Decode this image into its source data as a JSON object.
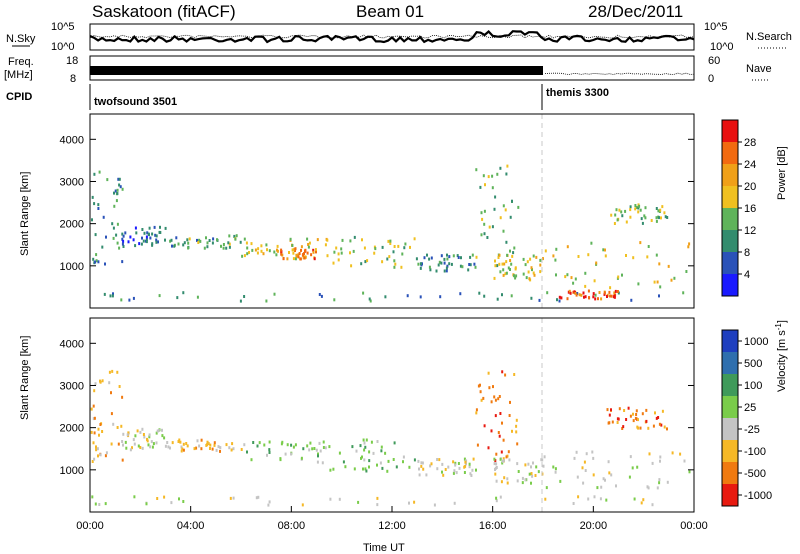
{
  "header": {
    "title": "Saskatoon (fitACF)",
    "beam": "Beam 01",
    "date": "28/Dec/2011"
  },
  "panels": {
    "nsky_label": "N.Sky",
    "nsearch_label": "N.Search",
    "freq_label": "Freq.",
    "freq_unit": "[MHz]",
    "nave_label": "Nave",
    "cpid_label": "CPID",
    "nsky_ticks": [
      "10^5",
      "10^0"
    ],
    "nsearch_ticks": [
      "10^5",
      "10^0"
    ],
    "freq_ticks": [
      "18",
      "8"
    ],
    "nave_ticks": [
      "60",
      "0"
    ],
    "cpid_segments": [
      {
        "start_hour": 0,
        "end_hour": 18,
        "name": "twofsound 3501"
      },
      {
        "start_hour": 18,
        "end_hour": 24,
        "name": "themis 3300"
      }
    ]
  },
  "colors": {
    "axis": "#000000",
    "marker_line": "#c8c8c8",
    "velocity_ground_scatter": "#c4c4c4"
  },
  "chart_data": [
    {
      "type": "heatmap",
      "name": "power",
      "xlabel": "",
      "ylabel": "Slant Range [km]",
      "xlim_hours": [
        0,
        24
      ],
      "ylim": [
        0,
        4600
      ],
      "yticks": [
        1000,
        2000,
        3000,
        4000
      ],
      "colorbar": {
        "label": "Power [dB]",
        "range": [
          0,
          32
        ],
        "ticks": [
          4,
          8,
          12,
          16,
          20,
          24,
          28
        ],
        "colors": [
          "#1a1aff",
          "#2a52b8",
          "#338c6e",
          "#5fb35a",
          "#f0c020",
          "#f0a018",
          "#f26a10",
          "#e81010"
        ]
      },
      "regions": [
        {
          "t": [
            0.0,
            1.3
          ],
          "r": [
            1000,
            3400
          ],
          "v": 10
        },
        {
          "t": [
            1.2,
            3.0
          ],
          "r": [
            1500,
            2000
          ],
          "v": 7
        },
        {
          "t": [
            3.0,
            6.0
          ],
          "r": [
            1450,
            1750
          ],
          "v": 12
        },
        {
          "t": [
            6.0,
            9.5
          ],
          "r": [
            1200,
            1700
          ],
          "v": 18
        },
        {
          "t": [
            7.5,
            9.0
          ],
          "r": [
            1200,
            1450
          ],
          "v": 24
        },
        {
          "t": [
            9.5,
            13.0
          ],
          "r": [
            1000,
            1750
          ],
          "v": 15
        },
        {
          "t": [
            13.0,
            15.3
          ],
          "r": [
            900,
            1300
          ],
          "v": 9
        },
        {
          "t": [
            15.3,
            17.0
          ],
          "r": [
            900,
            3400
          ],
          "v": 13
        },
        {
          "t": [
            16.0,
            18.0
          ],
          "r": [
            700,
            1300
          ],
          "v": 18
        },
        {
          "t": [
            18.0,
            24.0
          ],
          "r": [
            500,
            1600
          ],
          "v": 17
        },
        {
          "t": [
            20.5,
            23.0
          ],
          "r": [
            2000,
            2500
          ],
          "v": 14
        },
        {
          "t": [
            0.0,
            24.0
          ],
          "r": [
            200,
            400
          ],
          "v": 9
        },
        {
          "t": [
            18.5,
            21.0
          ],
          "r": [
            250,
            450
          ],
          "v": 27
        }
      ]
    },
    {
      "type": "heatmap",
      "name": "velocity",
      "xlabel": "Time UT",
      "ylabel": "Slant Range [km]",
      "xlim_hours": [
        0,
        24
      ],
      "ylim": [
        0,
        4600
      ],
      "yticks": [
        1000,
        2000,
        3000,
        4000
      ],
      "xticks": [
        "00:00",
        "04:00",
        "08:00",
        "12:00",
        "16:00",
        "20:00",
        "00:00"
      ],
      "xtick_hours": [
        0,
        4,
        8,
        12,
        16,
        20,
        24
      ],
      "colorbar": {
        "label": "Velocity [m s^-1]",
        "ticks": [
          "1000",
          "500",
          "100",
          "25",
          "-25",
          "-100",
          "-500",
          "-1000"
        ],
        "colors": [
          "#1f3fbf",
          "#2f6fae",
          "#3f9a5a",
          "#7acc4a",
          "#c4c4c4",
          "#f5b826",
          "#f07a10",
          "#e81a10"
        ]
      },
      "regions": [
        {
          "t": [
            0.0,
            1.3
          ],
          "r": [
            1200,
            3400
          ],
          "v": 5
        },
        {
          "t": [
            1.2,
            3.0
          ],
          "r": [
            1500,
            2000
          ],
          "v": 4
        },
        {
          "t": [
            3.0,
            6.0
          ],
          "r": [
            1450,
            1750
          ],
          "v": 5
        },
        {
          "t": [
            6.0,
            9.5
          ],
          "r": [
            1200,
            1700
          ],
          "v": 3
        },
        {
          "t": [
            9.5,
            13.0
          ],
          "r": [
            1000,
            1750
          ],
          "v": 3
        },
        {
          "t": [
            13.0,
            15.3
          ],
          "r": [
            900,
            1300
          ],
          "v": 4
        },
        {
          "t": [
            15.3,
            17.0
          ],
          "r": [
            1200,
            3400
          ],
          "v": 6
        },
        {
          "t": [
            16.0,
            18.0
          ],
          "r": [
            700,
            1300
          ],
          "v": 4
        },
        {
          "t": [
            18.0,
            24.0
          ],
          "r": [
            500,
            1500
          ],
          "v": 4
        },
        {
          "t": [
            20.5,
            23.0
          ],
          "r": [
            2000,
            2500
          ],
          "v": 6
        },
        {
          "t": [
            0.0,
            24.0
          ],
          "r": [
            200,
            400
          ],
          "v": 4
        }
      ]
    }
  ]
}
